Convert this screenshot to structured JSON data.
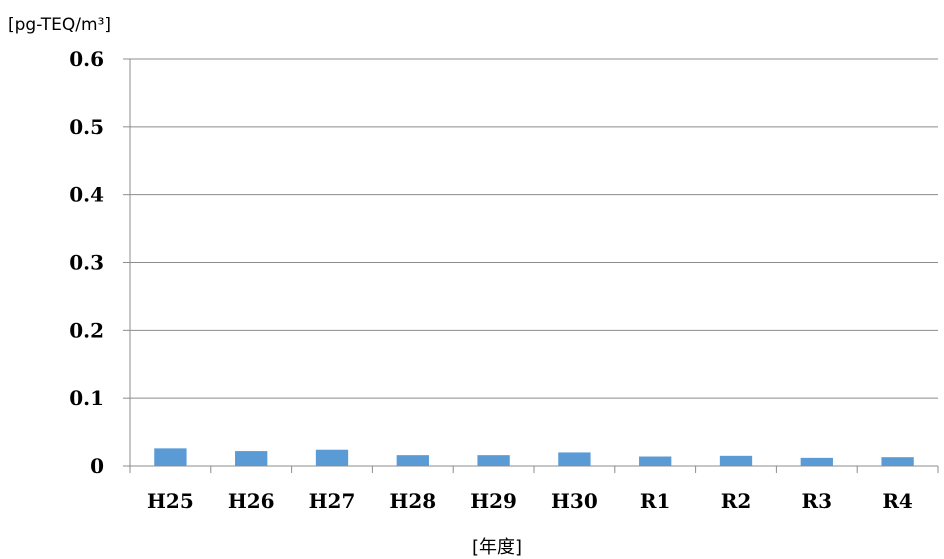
{
  "chart_data": {
    "type": "bar",
    "ylabel": "[pg-TEQ/m³]",
    "xlabel": "[年度]",
    "categories": [
      "H25",
      "H26",
      "H27",
      "H28",
      "H29",
      "H30",
      "R1",
      "R2",
      "R3",
      "R4"
    ],
    "values": [
      0.026,
      0.022,
      0.024,
      0.016,
      0.016,
      0.02,
      0.014,
      0.015,
      0.012,
      0.013
    ],
    "ylim": [
      0,
      0.6
    ],
    "yticks": [
      "0",
      "0.1",
      "0.2",
      "0.3",
      "0.4",
      "0.5",
      "0.6"
    ],
    "grid": true,
    "bar_color": "#5b9bd5"
  }
}
